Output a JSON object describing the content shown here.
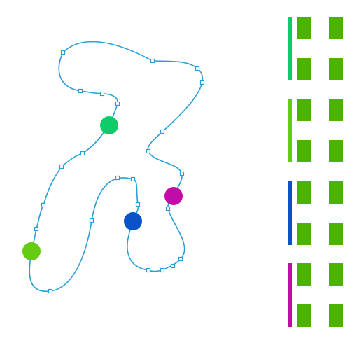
{
  "colors": {
    "background": "#ffffff",
    "track": "#2a9fd6",
    "handle_fill": "#ffffff",
    "slot_fill": "#4cb400"
  },
  "track": {
    "handle_icon": "square-handle-icon"
  },
  "balls": [
    {
      "name": "green-ball",
      "color": "#0fcc6a"
    },
    {
      "name": "lime-ball",
      "color": "#66cc11"
    },
    {
      "name": "blue-ball",
      "color": "#0a52c8"
    },
    {
      "name": "magenta-ball",
      "color": "#c20ca8"
    }
  ],
  "slot_groups": [
    {
      "indicator_color": "#0fcc6a"
    },
    {
      "indicator_color": "#66cc11"
    },
    {
      "indicator_color": "#0a52c8"
    },
    {
      "indicator_color": "#c20ca8"
    }
  ]
}
